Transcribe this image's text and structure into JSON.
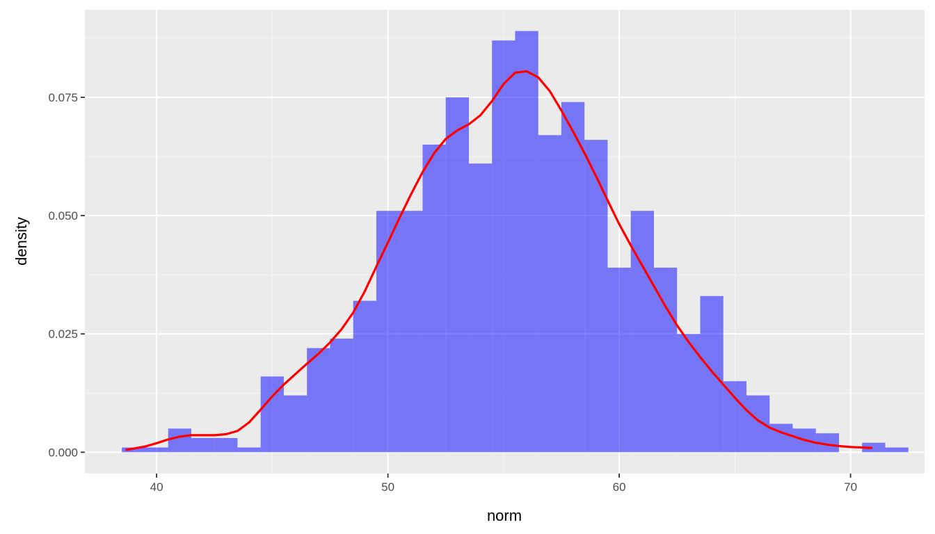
{
  "chart_data": {
    "type": "bar",
    "subtype": "histogram with density line",
    "title": "",
    "xlabel": "norm",
    "ylabel": "density",
    "xlim": [
      36.9,
      73.2
    ],
    "ylim": [
      -0.0045,
      0.0935
    ],
    "x_ticks": [
      40,
      50,
      60,
      70
    ],
    "y_ticks": [
      0.0,
      0.025,
      0.05,
      0.075
    ],
    "x_tick_labels": [
      "40",
      "50",
      "60",
      "70"
    ],
    "y_tick_labels": [
      "0.000",
      "0.025",
      "0.050",
      "0.075"
    ],
    "grid": true,
    "legend": "none",
    "histogram": {
      "fill": "#0000ff",
      "fill_opacity": 0.5,
      "bins": [
        {
          "x0": 38.5,
          "x1": 39.5,
          "density": 0.001
        },
        {
          "x0": 39.5,
          "x1": 40.5,
          "density": 0.001
        },
        {
          "x0": 40.5,
          "x1": 41.5,
          "density": 0.005
        },
        {
          "x0": 41.5,
          "x1": 42.5,
          "density": 0.003
        },
        {
          "x0": 42.5,
          "x1": 43.5,
          "density": 0.003
        },
        {
          "x0": 43.5,
          "x1": 44.5,
          "density": 0.001
        },
        {
          "x0": 44.5,
          "x1": 45.5,
          "density": 0.016
        },
        {
          "x0": 45.5,
          "x1": 46.5,
          "density": 0.012
        },
        {
          "x0": 46.5,
          "x1": 47.5,
          "density": 0.022
        },
        {
          "x0": 47.5,
          "x1": 48.5,
          "density": 0.024
        },
        {
          "x0": 48.5,
          "x1": 49.5,
          "density": 0.032
        },
        {
          "x0": 49.5,
          "x1": 50.5,
          "density": 0.051
        },
        {
          "x0": 50.5,
          "x1": 51.5,
          "density": 0.051
        },
        {
          "x0": 51.5,
          "x1": 52.5,
          "density": 0.065
        },
        {
          "x0": 52.5,
          "x1": 53.5,
          "density": 0.075
        },
        {
          "x0": 53.5,
          "x1": 54.5,
          "density": 0.061
        },
        {
          "x0": 54.5,
          "x1": 55.5,
          "density": 0.087
        },
        {
          "x0": 55.5,
          "x1": 56.5,
          "density": 0.089
        },
        {
          "x0": 56.5,
          "x1": 57.5,
          "density": 0.067
        },
        {
          "x0": 57.5,
          "x1": 58.5,
          "density": 0.074
        },
        {
          "x0": 58.5,
          "x1": 59.5,
          "density": 0.066
        },
        {
          "x0": 59.5,
          "x1": 60.5,
          "density": 0.039
        },
        {
          "x0": 60.5,
          "x1": 61.5,
          "density": 0.051
        },
        {
          "x0": 61.5,
          "x1": 62.5,
          "density": 0.039
        },
        {
          "x0": 62.5,
          "x1": 63.5,
          "density": 0.025
        },
        {
          "x0": 63.5,
          "x1": 64.5,
          "density": 0.033
        },
        {
          "x0": 64.5,
          "x1": 65.5,
          "density": 0.015
        },
        {
          "x0": 65.5,
          "x1": 66.5,
          "density": 0.012
        },
        {
          "x0": 66.5,
          "x1": 67.5,
          "density": 0.006
        },
        {
          "x0": 67.5,
          "x1": 68.5,
          "density": 0.005
        },
        {
          "x0": 68.5,
          "x1": 69.5,
          "density": 0.004
        },
        {
          "x0": 69.5,
          "x1": 70.5,
          "density": 0.0
        },
        {
          "x0": 70.5,
          "x1": 71.5,
          "density": 0.002
        },
        {
          "x0": 71.5,
          "x1": 72.5,
          "density": 0.001
        }
      ]
    },
    "density_line": {
      "color": "#ff0000",
      "x": [
        38.7,
        39.5,
        40.0,
        40.5,
        41.0,
        41.5,
        42.0,
        42.5,
        43.0,
        43.5,
        44.0,
        44.5,
        45.0,
        45.5,
        46.0,
        46.5,
        47.0,
        47.5,
        48.0,
        48.5,
        49.0,
        49.5,
        50.0,
        50.5,
        51.0,
        51.5,
        52.0,
        52.5,
        53.0,
        53.5,
        54.0,
        54.5,
        55.0,
        55.5,
        56.0,
        56.5,
        57.0,
        57.5,
        58.0,
        58.5,
        59.0,
        59.5,
        60.0,
        60.5,
        61.0,
        61.5,
        62.0,
        62.5,
        63.0,
        63.5,
        64.0,
        64.5,
        65.0,
        65.5,
        66.0,
        66.5,
        67.0,
        67.5,
        68.0,
        68.5,
        69.0,
        69.5,
        70.0,
        70.5,
        70.9
      ],
      "y": [
        0.0005,
        0.0012,
        0.0019,
        0.0027,
        0.0033,
        0.0036,
        0.0036,
        0.0036,
        0.0038,
        0.0045,
        0.0063,
        0.009,
        0.0118,
        0.0143,
        0.0165,
        0.0187,
        0.0208,
        0.0232,
        0.026,
        0.0295,
        0.034,
        0.0392,
        0.0443,
        0.0495,
        0.0545,
        0.0592,
        0.0632,
        0.0662,
        0.068,
        0.0693,
        0.0712,
        0.0742,
        0.0778,
        0.0802,
        0.0805,
        0.0792,
        0.0763,
        0.0722,
        0.0678,
        0.0632,
        0.0583,
        0.0532,
        0.0482,
        0.0437,
        0.0394,
        0.0351,
        0.0308,
        0.0268,
        0.0233,
        0.0201,
        0.0171,
        0.0143,
        0.0115,
        0.0089,
        0.0067,
        0.0052,
        0.0042,
        0.0034,
        0.0026,
        0.002,
        0.0016,
        0.0013,
        0.0011,
        0.001,
        0.0009
      ]
    }
  },
  "colors": {
    "panel_background": "#ebebeb",
    "grid_major": "#ffffff",
    "grid_minor": "#f5f5f5",
    "tick_mark": "#333333"
  }
}
